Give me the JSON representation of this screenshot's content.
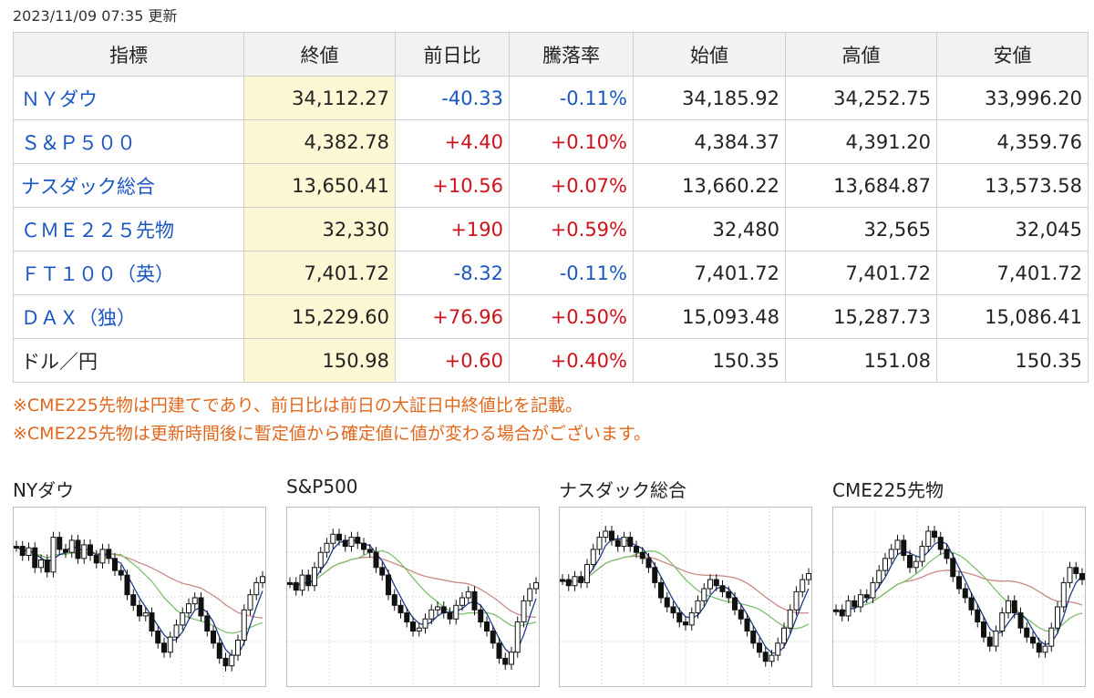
{
  "updated": "2023/11/09 07:35 更新",
  "table": {
    "headers": [
      "指標",
      "終値",
      "前日比",
      "騰落率",
      "始値",
      "高値",
      "安値"
    ],
    "rows": [
      {
        "name": "ＮＹダウ",
        "close": "34,112.27",
        "change": "-40.33",
        "rate": "-0.11%",
        "open": "34,185.92",
        "high": "34,252.75",
        "low": "33,996.20",
        "dir": "down",
        "link": true
      },
      {
        "name": "Ｓ＆Ｐ５００",
        "close": "4,382.78",
        "change": "+4.40",
        "rate": "+0.10%",
        "open": "4,384.37",
        "high": "4,391.20",
        "low": "4,359.76",
        "dir": "up",
        "link": true
      },
      {
        "name": "ナスダック総合",
        "close": "13,650.41",
        "change": "+10.56",
        "rate": "+0.07%",
        "open": "13,660.22",
        "high": "13,684.87",
        "low": "13,573.58",
        "dir": "up",
        "link": true
      },
      {
        "name": "ＣＭＥ２２５先物",
        "close": "32,330",
        "change": "+190",
        "rate": "+0.59%",
        "open": "32,480",
        "high": "32,565",
        "low": "32,045",
        "dir": "up",
        "link": true
      },
      {
        "name": "ＦＴ１００（英）",
        "close": "7,401.72",
        "change": "-8.32",
        "rate": "-0.11%",
        "open": "7,401.72",
        "high": "7,401.72",
        "low": "7,401.72",
        "dir": "down",
        "link": true
      },
      {
        "name": "ＤＡＸ（独）",
        "close": "15,229.60",
        "change": "+76.96",
        "rate": "+0.50%",
        "open": "15,093.48",
        "high": "15,287.73",
        "low": "15,086.41",
        "dir": "up",
        "link": true
      },
      {
        "name": "ドル／円",
        "close": "150.98",
        "change": "+0.60",
        "rate": "+0.40%",
        "open": "150.35",
        "high": "151.08",
        "low": "150.35",
        "dir": "up",
        "link": false
      }
    ]
  },
  "notes": [
    "※CME225先物は円建てであり、前日比は前日の大証日中終値比を記載。",
    "※CME225先物は更新時間後に暫定値から確定値に値が変わる場合がございます。"
  ],
  "charts": [
    {
      "title": "NYダウ",
      "series": [
        0.16,
        0.22,
        0.17,
        0.3,
        0.25,
        0.33,
        0.1,
        0.18,
        0.2,
        0.12,
        0.24,
        0.15,
        0.22,
        0.27,
        0.18,
        0.24,
        0.32,
        0.35,
        0.48,
        0.55,
        0.62,
        0.6,
        0.72,
        0.8,
        0.86,
        0.76,
        0.68,
        0.6,
        0.54,
        0.5,
        0.62,
        0.72,
        0.8,
        0.9,
        0.95,
        0.88,
        0.78,
        0.58,
        0.48,
        0.4,
        0.36
      ]
    },
    {
      "title": "S&P500",
      "series": [
        0.4,
        0.45,
        0.35,
        0.42,
        0.3,
        0.2,
        0.14,
        0.08,
        0.12,
        0.16,
        0.1,
        0.14,
        0.18,
        0.2,
        0.3,
        0.35,
        0.48,
        0.55,
        0.6,
        0.66,
        0.72,
        0.7,
        0.64,
        0.58,
        0.56,
        0.6,
        0.64,
        0.55,
        0.5,
        0.46,
        0.58,
        0.66,
        0.72,
        0.8,
        0.9,
        0.94,
        0.86,
        0.66,
        0.52,
        0.44,
        0.4
      ]
    },
    {
      "title": "ナスダック総合",
      "series": [
        0.38,
        0.42,
        0.36,
        0.4,
        0.28,
        0.18,
        0.1,
        0.06,
        0.12,
        0.16,
        0.1,
        0.16,
        0.2,
        0.24,
        0.3,
        0.4,
        0.5,
        0.56,
        0.6,
        0.66,
        0.68,
        0.6,
        0.52,
        0.44,
        0.38,
        0.42,
        0.46,
        0.5,
        0.58,
        0.64,
        0.72,
        0.8,
        0.86,
        0.92,
        0.88,
        0.8,
        0.7,
        0.58,
        0.46,
        0.38,
        0.34
      ]
    },
    {
      "title": "CME225先物",
      "series": [
        0.58,
        0.62,
        0.52,
        0.56,
        0.48,
        0.5,
        0.4,
        0.32,
        0.24,
        0.18,
        0.12,
        0.22,
        0.3,
        0.26,
        0.16,
        0.06,
        0.1,
        0.18,
        0.24,
        0.36,
        0.44,
        0.5,
        0.58,
        0.66,
        0.76,
        0.82,
        0.72,
        0.6,
        0.52,
        0.6,
        0.7,
        0.76,
        0.8,
        0.86,
        0.82,
        0.7,
        0.56,
        0.4,
        0.3,
        0.34,
        0.38
      ]
    }
  ],
  "colors": {
    "up": "#d0121b",
    "down": "#1a56c2",
    "note": "#e0671c",
    "close_bg": "#fdf8d3",
    "candle": "#111111",
    "ma_short": "#1f3b8c",
    "ma_mid": "#7dbf6e",
    "ma_long": "#c98a84",
    "grid": "#dcdcdc"
  }
}
